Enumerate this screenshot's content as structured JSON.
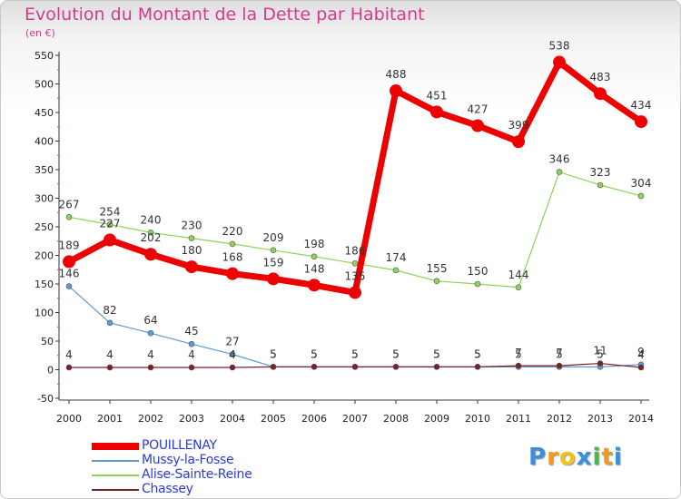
{
  "chart_data": {
    "type": "line",
    "title": "Evolution du Montant de la Dette par Habitant",
    "subtitle": "(en €)",
    "categories": [
      "2000",
      "2001",
      "2002",
      "2003",
      "2004",
      "2005",
      "2006",
      "2007",
      "2008",
      "2009",
      "2010",
      "2011",
      "2012",
      "2013",
      "2014"
    ],
    "ylim": [
      -50,
      550
    ],
    "yticks": [
      -50,
      0,
      50,
      100,
      150,
      200,
      250,
      300,
      350,
      400,
      450,
      500,
      550
    ],
    "grid": false,
    "legend_position": "bottom-left",
    "series": [
      {
        "name": "POUILLENAY",
        "color": "#ee0000",
        "values": [
          189,
          227,
          202,
          180,
          168,
          159,
          148,
          135,
          488,
          451,
          427,
          399,
          538,
          483,
          434
        ]
      },
      {
        "name": "Mussy-la-Fosse",
        "color": "#5b9bd5",
        "values": [
          146,
          82,
          64,
          45,
          27,
          5,
          5,
          5,
          5,
          5,
          5,
          5,
          5,
          5,
          9
        ]
      },
      {
        "name": "Alise-Sainte-Reine",
        "color": "#8cd35a",
        "values": [
          267,
          254,
          240,
          230,
          220,
          209,
          198,
          186,
          174,
          155,
          150,
          144,
          346,
          323,
          304
        ]
      },
      {
        "name": "Chassey",
        "color": "#7b1f2a",
        "values": [
          4,
          4,
          4,
          4,
          4,
          5,
          5,
          5,
          5,
          5,
          5,
          7,
          7,
          11,
          4
        ]
      }
    ]
  },
  "logo": {
    "letters": [
      "P",
      "r",
      "o",
      "x",
      "i",
      "t",
      "i"
    ],
    "colors": [
      "#3c8fd8",
      "#f29a1f",
      "#f0c419",
      "#3c8fd8",
      "#4bb84b",
      "#f29a1f",
      "#3c8fd8"
    ]
  }
}
